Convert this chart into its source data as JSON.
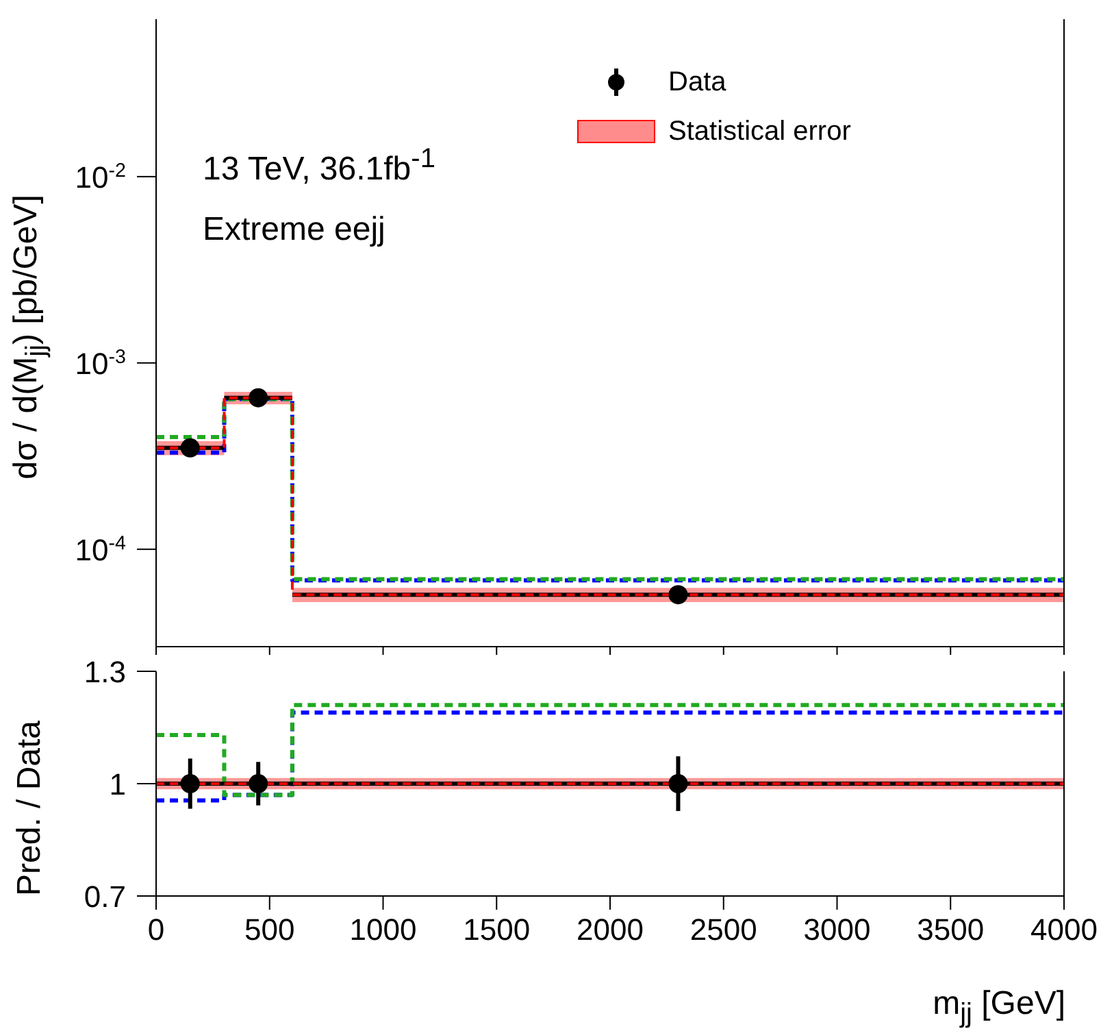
{
  "chart_data": [
    {
      "type": "step",
      "ylabel": "dσ / d(M$_{jj}$) [pb/GeV]",
      "annotations": [
        "13 TeV, 36.1fb$^{-1}$",
        "Extreme eejj"
      ],
      "xlim": [
        0,
        4000
      ],
      "xticks": [
        0,
        500,
        1000,
        1500,
        2000,
        2500,
        3000,
        3500,
        4000
      ],
      "ylim": [
        3e-05,
        0.07
      ],
      "log": "y",
      "yticks": [
        {
          "value": 0.0001,
          "label": "10$^{-4}$"
        },
        {
          "value": 0.001,
          "label": "10$^{-3}$"
        },
        {
          "value": 0.01,
          "label": "10$^{-2}$"
        }
      ],
      "tick_labels": "y",
      "legend": "top right",
      "series": [
        {
          "name": "Data",
          "type": "scatter",
          "marker": "circle",
          "color": "#000000",
          "x": [
            150,
            450,
            2300
          ],
          "values": [
            0.00035,
            0.00065,
            5.7e-05
          ],
          "xerrors": [
            150,
            150,
            1700
          ]
        },
        {
          "name": "Statistical error",
          "line_style": "dashed",
          "color": "#ff0000",
          "x": [
            0,
            300,
            600,
            4000
          ],
          "values": [
            0.00035,
            0.00065,
            5.7e-05,
            5.7e-05
          ],
          "lower": [
            0.00032,
            0.0006,
            5.2e-05,
            5.2e-05
          ],
          "upper": [
            0.00038,
            0.0007,
            6.2e-05,
            6.2e-05
          ]
        },
        {
          "line_style": "dashed",
          "color": "#0000ff",
          "x": [
            0,
            300,
            600,
            4000
          ],
          "values": [
            0.00033,
            0.00064,
            6.8e-05,
            6.8e-05
          ]
        },
        {
          "line_style": "dashed",
          "color": "#22aa22",
          "x": [
            0,
            300,
            600,
            4000
          ],
          "values": [
            0.0004,
            0.00064,
            6.9e-05,
            6.9e-05
          ]
        }
      ]
    },
    {
      "type": "step",
      "xlabel": "m$_{jj}$ [GeV]",
      "ylabel": "Pred. / Data",
      "xlim": [
        0,
        4000
      ],
      "xticks": [
        0,
        500,
        1000,
        1500,
        2000,
        2500,
        3000,
        3500,
        4000
      ],
      "ylim": [
        0.7,
        1.3
      ],
      "yticks": [
        {
          "value": 0.7,
          "label": "0.7"
        },
        1,
        {
          "value": 1.3,
          "label": "1.3"
        }
      ],
      "series": [
        {
          "line_style": "dashed",
          "color": "#ff0000",
          "x": [
            0,
            300,
            600,
            4000
          ],
          "values": [
            1,
            1,
            1,
            1
          ],
          "lower": [
            0.985,
            0.985,
            0.985,
            0.985
          ],
          "upper": [
            1.015,
            1.015,
            1.015,
            1.015
          ]
        },
        {
          "type": "scatter",
          "marker": "circle",
          "color": "#000000",
          "x": [
            150,
            450,
            2300
          ],
          "values": [
            1,
            1,
            1
          ],
          "errors": [
            0.067,
            0.058,
            0.073
          ],
          "xerrors": [
            150,
            150,
            1700
          ]
        },
        {
          "line_style": "dashed",
          "color": "#0000ff",
          "x": [
            0,
            300,
            600,
            4000
          ],
          "values": [
            0.955,
            0.97,
            1.19,
            1.19
          ]
        },
        {
          "line_style": "dashed",
          "color": "#22aa22",
          "x": [
            0,
            300,
            600,
            4000
          ],
          "values": [
            1.13,
            0.97,
            1.21,
            1.21
          ]
        }
      ]
    }
  ]
}
